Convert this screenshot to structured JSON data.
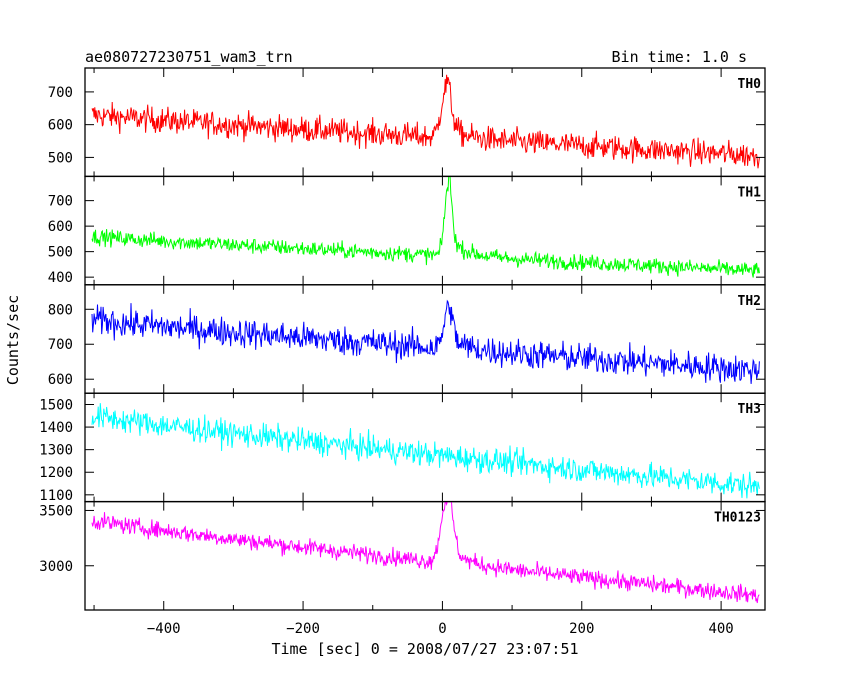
{
  "chart_data": {
    "type": "line",
    "title": "ae080727230751_wam3_trn",
    "bin_time_label": "Bin time: 1.0 s",
    "xlabel": "Time [sec] 0 = 2008/07/27 23:07:51",
    "ylabel": "Counts/sec",
    "xlim": [
      -513,
      463
    ],
    "x_ticks": [
      -400,
      -200,
      0,
      200,
      400
    ],
    "grid": false,
    "panels": [
      {
        "name": "TH0",
        "color": "#ff0000",
        "ylim": [
          442,
          773
        ],
        "y_ticks": [
          500,
          600,
          700
        ],
        "baseline_start": 630,
        "baseline_end": 505,
        "noise": 28,
        "peak": {
          "x": 5,
          "height": 150,
          "width": 7
        }
      },
      {
        "name": "TH1",
        "color": "#00ff00",
        "ylim": [
          370,
          795
        ],
        "y_ticks": [
          400,
          500,
          600,
          700
        ],
        "baseline_start": 560,
        "baseline_end": 425,
        "noise": 22,
        "peak": {
          "x": 8,
          "height": 270,
          "width": 5
        }
      },
      {
        "name": "TH2",
        "color": "#0000ff",
        "ylim": [
          560,
          870
        ],
        "y_ticks": [
          600,
          700,
          800
        ],
        "baseline_start": 770,
        "baseline_end": 625,
        "noise": 30,
        "peak": {
          "x": 8,
          "height": 110,
          "width": 6
        }
      },
      {
        "name": "TH3",
        "color": "#00ffff",
        "ylim": [
          1070,
          1550
        ],
        "y_ticks": [
          1100,
          1200,
          1300,
          1400,
          1500
        ],
        "baseline_start": 1450,
        "baseline_end": 1135,
        "noise": 40,
        "peak": null
      },
      {
        "name": "TH0123",
        "color": "#ff00ff",
        "ylim": [
          2600,
          3580
        ],
        "y_ticks": [
          3000,
          3500
        ],
        "baseline_start": 3410,
        "baseline_end": 2730,
        "noise": 55,
        "peak": {
          "x": 6,
          "height": 580,
          "width": 8
        }
      }
    ]
  }
}
